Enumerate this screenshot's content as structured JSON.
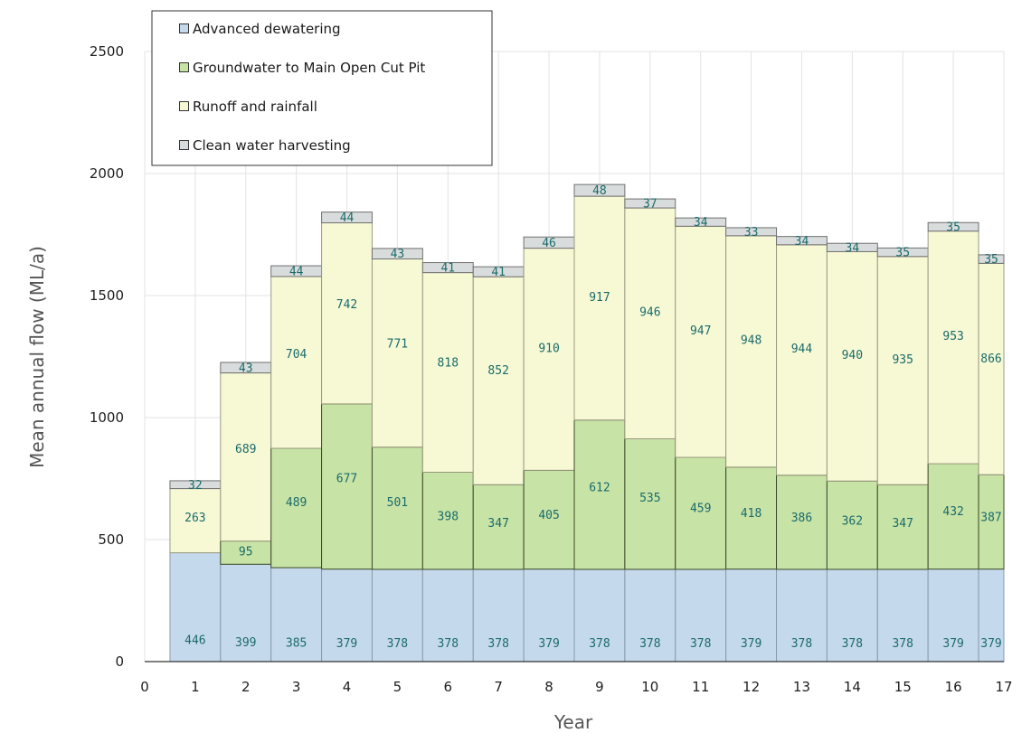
{
  "chart_data": {
    "type": "bar",
    "stacked": true,
    "title": "",
    "xlabel": "Year",
    "ylabel": "Mean annual flow (ML/a)",
    "xlim": [
      0,
      17
    ],
    "ylim": [
      0,
      2500
    ],
    "x_ticks": [
      "0",
      "1",
      "2",
      "3",
      "4",
      "5",
      "6",
      "7",
      "8",
      "9",
      "10",
      "11",
      "12",
      "13",
      "14",
      "15",
      "16",
      "17"
    ],
    "y_ticks": [
      "0",
      "500",
      "1000",
      "1500",
      "2000",
      "2500"
    ],
    "grid": true,
    "legend_position": "top-left",
    "categories": [
      "1",
      "2",
      "3",
      "4",
      "5",
      "6",
      "7",
      "8",
      "9",
      "10",
      "11",
      "12",
      "13",
      "14",
      "15",
      "16",
      "17"
    ],
    "series": [
      {
        "name": "Advanced dewatering",
        "color": "#c5d9ec",
        "values": [
          446,
          399,
          385,
          379,
          378,
          378,
          378,
          379,
          378,
          378,
          378,
          379,
          378,
          378,
          378,
          379,
          379
        ]
      },
      {
        "name": "Groundwater to Main Open Cut Pit",
        "color": "#c8e3a6",
        "values": [
          0,
          95,
          489,
          677,
          501,
          398,
          347,
          405,
          612,
          535,
          459,
          418,
          386,
          362,
          347,
          432,
          387
        ]
      },
      {
        "name": "Runoff and rainfall",
        "color": "#f7f9d5",
        "values": [
          263,
          689,
          704,
          742,
          771,
          818,
          852,
          910,
          917,
          946,
          947,
          948,
          944,
          940,
          935,
          953,
          866
        ]
      },
      {
        "name": "Clean water harvesting",
        "color": "#d9dcdc",
        "values": [
          32,
          43,
          44,
          44,
          43,
          41,
          41,
          46,
          48,
          37,
          34,
          33,
          34,
          34,
          35,
          35,
          35
        ]
      }
    ]
  }
}
